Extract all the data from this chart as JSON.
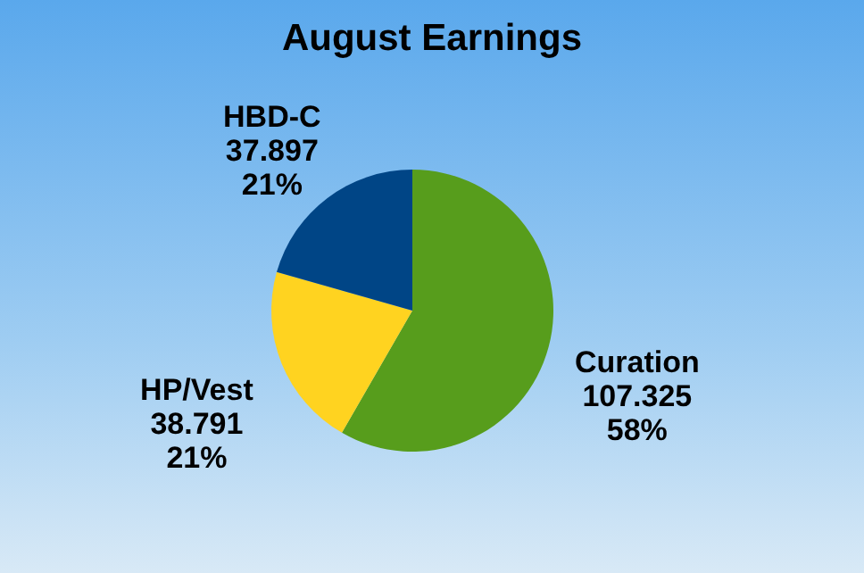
{
  "chart_data": {
    "type": "pie",
    "title": "August Earnings",
    "categories": [
      "Curation",
      "HP/Vest",
      "HBD-C"
    ],
    "values": [
      107.325,
      38.791,
      37.897
    ],
    "colors": [
      "#579d1c",
      "#ffd320",
      "#004586"
    ],
    "value_labels": [
      "107.325\n58%",
      "38.791\n21%",
      "37.897\n21%"
    ]
  }
}
